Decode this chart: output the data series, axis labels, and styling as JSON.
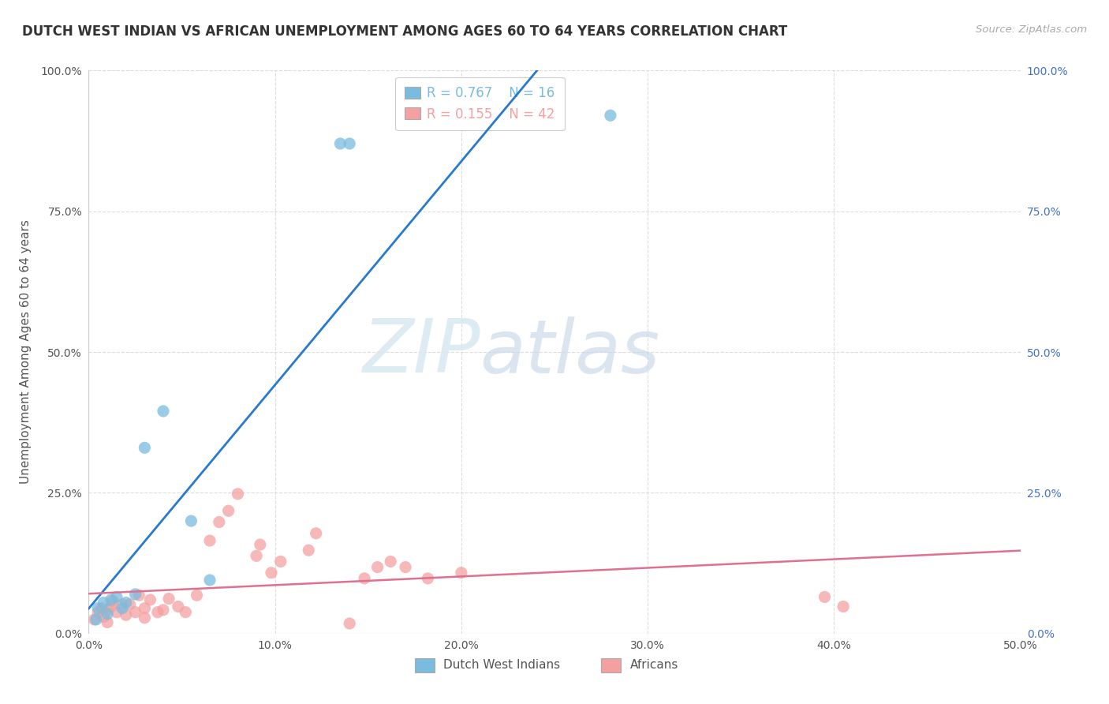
{
  "title": "DUTCH WEST INDIAN VS AFRICAN UNEMPLOYMENT AMONG AGES 60 TO 64 YEARS CORRELATION CHART",
  "source": "Source: ZipAtlas.com",
  "ylabel": "Unemployment Among Ages 60 to 64 years",
  "xlim": [
    0.0,
    0.5
  ],
  "ylim": [
    0.0,
    1.0
  ],
  "xticks": [
    0.0,
    0.1,
    0.2,
    0.3,
    0.4,
    0.5
  ],
  "yticks": [
    0.0,
    0.25,
    0.5,
    0.75,
    1.0
  ],
  "xticklabels": [
    "0.0%",
    "10.0%",
    "20.0%",
    "30.0%",
    "40.0%",
    "50.0%"
  ],
  "yticklabels": [
    "0.0%",
    "25.0%",
    "50.0%",
    "75.0%",
    "100.0%"
  ],
  "blue_color": "#7abcdf",
  "pink_color": "#f4a0a0",
  "blue_line_color": "#2979cc",
  "pink_line_color": "#e07090",
  "blue_R": 0.767,
  "blue_N": 16,
  "pink_R": 0.155,
  "pink_N": 42,
  "blue_scatter_x": [
    0.004,
    0.005,
    0.008,
    0.01,
    0.012,
    0.015,
    0.018,
    0.02,
    0.025,
    0.03,
    0.04,
    0.055,
    0.065,
    0.135,
    0.14,
    0.28
  ],
  "blue_scatter_y": [
    0.025,
    0.045,
    0.055,
    0.035,
    0.06,
    0.065,
    0.045,
    0.055,
    0.07,
    0.33,
    0.395,
    0.2,
    0.095,
    0.87,
    0.87,
    0.92
  ],
  "pink_scatter_x": [
    0.003,
    0.005,
    0.007,
    0.008,
    0.01,
    0.01,
    0.012,
    0.013,
    0.015,
    0.018,
    0.02,
    0.022,
    0.025,
    0.027,
    0.03,
    0.03,
    0.033,
    0.037,
    0.04,
    0.043,
    0.048,
    0.052,
    0.058,
    0.065,
    0.07,
    0.075,
    0.08,
    0.09,
    0.092,
    0.098,
    0.103,
    0.118,
    0.122,
    0.14,
    0.148,
    0.155,
    0.162,
    0.17,
    0.182,
    0.2,
    0.395,
    0.405
  ],
  "pink_scatter_y": [
    0.025,
    0.038,
    0.045,
    0.03,
    0.02,
    0.042,
    0.048,
    0.058,
    0.038,
    0.052,
    0.033,
    0.052,
    0.038,
    0.068,
    0.028,
    0.045,
    0.06,
    0.038,
    0.042,
    0.062,
    0.048,
    0.038,
    0.068,
    0.165,
    0.198,
    0.218,
    0.248,
    0.138,
    0.158,
    0.108,
    0.128,
    0.148,
    0.178,
    0.018,
    0.098,
    0.118,
    0.128,
    0.118,
    0.098,
    0.108,
    0.065,
    0.048
  ],
  "watermark_zip": "ZIP",
  "watermark_atlas": "atlas",
  "background_color": "#ffffff",
  "grid_color": "#dddddd",
  "legend_label_blue": "Dutch West Indians",
  "legend_label_pink": "Africans",
  "legend_text_color": "#555555"
}
